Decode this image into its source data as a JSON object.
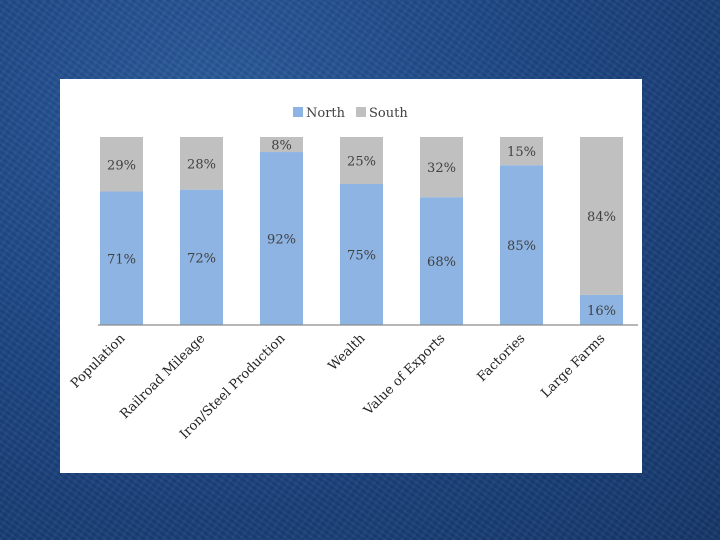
{
  "chart_data": {
    "type": "bar",
    "stacked": true,
    "percent": true,
    "categories": [
      "Population",
      "Railroad Mileage",
      "Iron/Steel Production",
      "Wealth",
      "Value of Exports",
      "Factories",
      "Large Farms"
    ],
    "series": [
      {
        "name": "North",
        "values": [
          71,
          72,
          92,
          75,
          68,
          85,
          16
        ],
        "color": "#8eb4e3"
      },
      {
        "name": "South",
        "values": [
          29,
          28,
          8,
          25,
          32,
          15,
          84
        ],
        "color": "#c0c0c0"
      }
    ],
    "data_labels": {
      "North": [
        "71%",
        "72%",
        "92%",
        "75%",
        "68%",
        "85%",
        "16%"
      ],
      "South": [
        "29%",
        "28%",
        "8%",
        "25%",
        "32%",
        "15%",
        "84%"
      ]
    },
    "ylim": [
      0,
      100
    ],
    "legend": "top-center",
    "grid": false
  }
}
